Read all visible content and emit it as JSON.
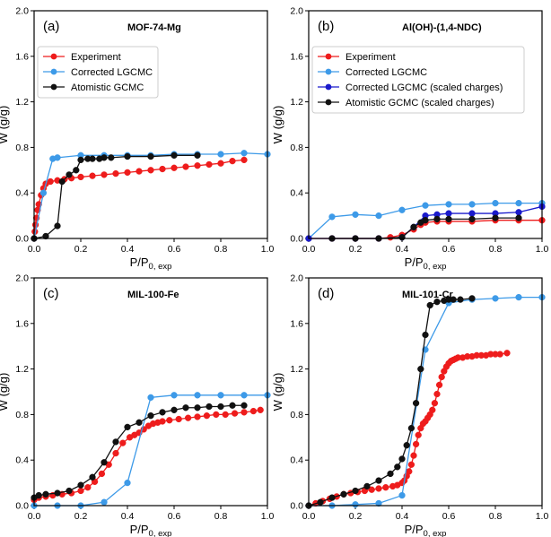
{
  "colors": {
    "experiment": "#ee1c1c",
    "corrected": "#3d9ae8",
    "atomistic": "#111111",
    "corrected_scaled": "#1a1acc",
    "axis": "#000000",
    "legend_border": "#cccccc"
  },
  "chart_data": [
    {
      "type": "line",
      "panel_label": "(a)",
      "title": "MOF-74-Mg",
      "xlabel_main": "P/P",
      "xlabel_sub": "0, exp",
      "ylabel": "W (g/g)",
      "xlim": [
        0,
        1.0
      ],
      "ylim": [
        0,
        2.0
      ],
      "xticks": [
        "0.0",
        "0.2",
        "0.4",
        "0.6",
        "0.8",
        "1.0"
      ],
      "yticks": [
        "0.0",
        "0.4",
        "0.8",
        "1.2",
        "1.6",
        "2.0"
      ],
      "legend_position": "top-left",
      "series": [
        {
          "name": "Experiment",
          "color_key": "experiment",
          "x": [
            0.0,
            0.003,
            0.006,
            0.01,
            0.015,
            0.02,
            0.03,
            0.04,
            0.05,
            0.07,
            0.1,
            0.13,
            0.16,
            0.2,
            0.25,
            0.3,
            0.35,
            0.4,
            0.45,
            0.5,
            0.55,
            0.6,
            0.65,
            0.7,
            0.75,
            0.8,
            0.85,
            0.9
          ],
          "y": [
            0.0,
            0.06,
            0.12,
            0.18,
            0.25,
            0.3,
            0.38,
            0.44,
            0.48,
            0.5,
            0.51,
            0.52,
            0.53,
            0.54,
            0.55,
            0.56,
            0.57,
            0.58,
            0.59,
            0.6,
            0.61,
            0.62,
            0.63,
            0.64,
            0.65,
            0.66,
            0.68,
            0.69
          ]
        },
        {
          "name": "Corrected LGCMC",
          "color_key": "corrected",
          "x": [
            0.0,
            0.04,
            0.08,
            0.1,
            0.2,
            0.3,
            0.4,
            0.5,
            0.6,
            0.7,
            0.8,
            0.9,
            1.0
          ],
          "y": [
            0.0,
            0.4,
            0.7,
            0.71,
            0.73,
            0.73,
            0.73,
            0.73,
            0.74,
            0.74,
            0.74,
            0.75,
            0.74
          ]
        },
        {
          "name": "Atomistic GCMC",
          "color_key": "atomistic",
          "x": [
            0.0,
            0.05,
            0.1,
            0.12,
            0.15,
            0.18,
            0.2,
            0.23,
            0.25,
            0.28,
            0.3,
            0.33,
            0.4,
            0.5,
            0.6,
            0.7
          ],
          "y": [
            0.0,
            0.02,
            0.11,
            0.5,
            0.56,
            0.6,
            0.69,
            0.7,
            0.7,
            0.7,
            0.71,
            0.71,
            0.72,
            0.72,
            0.73,
            0.73
          ]
        }
      ]
    },
    {
      "type": "line",
      "panel_label": "(b)",
      "title": "Al(OH)-(1,4-NDC)",
      "xlabel_main": "P/P",
      "xlabel_sub": "0, exp",
      "ylabel": "W (g/g)",
      "xlim": [
        0,
        1.0
      ],
      "ylim": [
        0,
        2.0
      ],
      "xticks": [
        "0.0",
        "0.2",
        "0.4",
        "0.6",
        "0.8",
        "1.0"
      ],
      "yticks": [
        "0.0",
        "0.4",
        "0.8",
        "1.2",
        "1.6",
        "2.0"
      ],
      "legend_position": "top-left",
      "series": [
        {
          "name": "Experiment",
          "color_key": "experiment",
          "x": [
            0.0,
            0.1,
            0.2,
            0.3,
            0.35,
            0.4,
            0.45,
            0.48,
            0.5,
            0.55,
            0.6,
            0.7,
            0.8,
            0.9,
            1.0
          ],
          "y": [
            0.0,
            0.0,
            0.0,
            0.0,
            0.01,
            0.03,
            0.08,
            0.12,
            0.14,
            0.15,
            0.15,
            0.15,
            0.16,
            0.16,
            0.16
          ]
        },
        {
          "name": "Corrected LGCMC",
          "color_key": "corrected",
          "x": [
            0.0,
            0.1,
            0.2,
            0.3,
            0.4,
            0.5,
            0.6,
            0.7,
            0.8,
            0.9,
            1.0
          ],
          "y": [
            0.0,
            0.19,
            0.21,
            0.2,
            0.25,
            0.29,
            0.3,
            0.3,
            0.31,
            0.31,
            0.31
          ]
        },
        {
          "name": "Corrected LGCMC (scaled charges)",
          "color_key": "corrected_scaled",
          "x": [
            0.0,
            0.1,
            0.2,
            0.3,
            0.4,
            0.45,
            0.5,
            0.55,
            0.6,
            0.7,
            0.8,
            0.9,
            1.0
          ],
          "y": [
            0.0,
            0.0,
            0.0,
            0.0,
            0.01,
            0.1,
            0.2,
            0.21,
            0.22,
            0.22,
            0.22,
            0.23,
            0.28
          ]
        },
        {
          "name": "Atomistic GCMC (scaled charges)",
          "color_key": "atomistic",
          "x": [
            0.1,
            0.2,
            0.3,
            0.4,
            0.45,
            0.48,
            0.5,
            0.55,
            0.6,
            0.7,
            0.8,
            0.9
          ],
          "y": [
            0.0,
            0.0,
            0.0,
            0.01,
            0.1,
            0.14,
            0.16,
            0.17,
            0.17,
            0.17,
            0.18,
            0.18
          ]
        }
      ]
    },
    {
      "type": "line",
      "panel_label": "(c)",
      "title": "MIL-100-Fe",
      "xlabel_main": "P/P",
      "xlabel_sub": "0, exp",
      "ylabel": "W (g/g)",
      "xlim": [
        0,
        1.0
      ],
      "ylim": [
        0,
        2.0
      ],
      "xticks": [
        "0.0",
        "0.2",
        "0.4",
        "0.6",
        "0.8",
        "1.0"
      ],
      "yticks": [
        "0.0",
        "0.4",
        "0.8",
        "1.2",
        "1.6",
        "2.0"
      ],
      "legend_position": "none",
      "series": [
        {
          "name": "Experiment",
          "color_key": "experiment",
          "x": [
            0.0,
            0.02,
            0.05,
            0.08,
            0.12,
            0.16,
            0.2,
            0.23,
            0.26,
            0.29,
            0.32,
            0.35,
            0.38,
            0.41,
            0.43,
            0.45,
            0.47,
            0.49,
            0.51,
            0.53,
            0.55,
            0.58,
            0.62,
            0.66,
            0.7,
            0.74,
            0.78,
            0.82,
            0.86,
            0.9,
            0.94,
            0.97
          ],
          "y": [
            0.05,
            0.07,
            0.08,
            0.09,
            0.1,
            0.11,
            0.13,
            0.16,
            0.21,
            0.28,
            0.36,
            0.46,
            0.55,
            0.6,
            0.62,
            0.64,
            0.67,
            0.7,
            0.72,
            0.73,
            0.74,
            0.75,
            0.76,
            0.77,
            0.78,
            0.79,
            0.8,
            0.8,
            0.81,
            0.82,
            0.83,
            0.84
          ]
        },
        {
          "name": "Corrected LGCMC",
          "color_key": "corrected",
          "x": [
            0.0,
            0.1,
            0.2,
            0.3,
            0.4,
            0.5,
            0.6,
            0.7,
            0.8,
            0.9,
            1.0
          ],
          "y": [
            0.0,
            0.0,
            0.0,
            0.03,
            0.2,
            0.95,
            0.97,
            0.97,
            0.97,
            0.97,
            0.97
          ]
        },
        {
          "name": "Atomistic GCMC",
          "color_key": "atomistic",
          "x": [
            0.0,
            0.02,
            0.05,
            0.1,
            0.15,
            0.2,
            0.25,
            0.3,
            0.35,
            0.4,
            0.45,
            0.5,
            0.55,
            0.6,
            0.65,
            0.7,
            0.75,
            0.8,
            0.85,
            0.9
          ],
          "y": [
            0.07,
            0.09,
            0.1,
            0.11,
            0.13,
            0.18,
            0.25,
            0.38,
            0.56,
            0.69,
            0.73,
            0.79,
            0.82,
            0.84,
            0.86,
            0.86,
            0.87,
            0.87,
            0.88,
            0.88
          ]
        }
      ]
    },
    {
      "type": "line",
      "panel_label": "(d)",
      "title": "MIL-101-Cr",
      "xlabel_main": "P/P",
      "xlabel_sub": "0, exp",
      "ylabel": "W (g/g)",
      "xlim": [
        0,
        1.0
      ],
      "ylim": [
        0,
        2.0
      ],
      "xticks": [
        "0.0",
        "0.2",
        "0.4",
        "0.6",
        "0.8",
        "1.0"
      ],
      "yticks": [
        "0.0",
        "0.4",
        "0.8",
        "1.2",
        "1.6",
        "2.0"
      ],
      "legend_position": "none",
      "series": [
        {
          "name": "Experiment",
          "color_key": "experiment",
          "x": [
            0.0,
            0.03,
            0.06,
            0.09,
            0.12,
            0.15,
            0.18,
            0.21,
            0.24,
            0.27,
            0.3,
            0.33,
            0.36,
            0.38,
            0.4,
            0.41,
            0.42,
            0.43,
            0.44,
            0.45,
            0.46,
            0.47,
            0.48,
            0.49,
            0.5,
            0.51,
            0.52,
            0.53,
            0.54,
            0.55,
            0.56,
            0.57,
            0.58,
            0.59,
            0.6,
            0.61,
            0.62,
            0.63,
            0.64,
            0.66,
            0.68,
            0.7,
            0.72,
            0.74,
            0.76,
            0.78,
            0.8,
            0.82,
            0.85
          ],
          "y": [
            0.0,
            0.02,
            0.04,
            0.06,
            0.08,
            0.1,
            0.11,
            0.12,
            0.13,
            0.14,
            0.15,
            0.16,
            0.17,
            0.18,
            0.2,
            0.22,
            0.26,
            0.3,
            0.36,
            0.44,
            0.54,
            0.62,
            0.68,
            0.72,
            0.74,
            0.77,
            0.8,
            0.84,
            0.9,
            0.98,
            1.06,
            1.13,
            1.18,
            1.22,
            1.25,
            1.27,
            1.28,
            1.29,
            1.3,
            1.3,
            1.31,
            1.31,
            1.32,
            1.32,
            1.32,
            1.33,
            1.33,
            1.33,
            1.34
          ]
        },
        {
          "name": "Corrected LGCMC",
          "color_key": "corrected",
          "x": [
            0.0,
            0.1,
            0.2,
            0.3,
            0.4,
            0.5,
            0.6,
            0.7,
            0.8,
            0.9,
            1.0
          ],
          "y": [
            0.0,
            0.0,
            0.01,
            0.02,
            0.09,
            1.37,
            1.78,
            1.81,
            1.82,
            1.83,
            1.83
          ]
        },
        {
          "name": "Atomistic GCMC",
          "color_key": "atomistic",
          "x": [
            0.0,
            0.05,
            0.1,
            0.15,
            0.2,
            0.25,
            0.3,
            0.35,
            0.38,
            0.4,
            0.42,
            0.44,
            0.46,
            0.48,
            0.5,
            0.52,
            0.55,
            0.58,
            0.6,
            0.62,
            0.65,
            0.7
          ],
          "y": [
            0.0,
            0.03,
            0.07,
            0.1,
            0.13,
            0.17,
            0.22,
            0.28,
            0.34,
            0.41,
            0.53,
            0.68,
            0.9,
            1.2,
            1.5,
            1.76,
            1.79,
            1.8,
            1.81,
            1.81,
            1.81,
            1.82
          ]
        }
      ]
    }
  ]
}
